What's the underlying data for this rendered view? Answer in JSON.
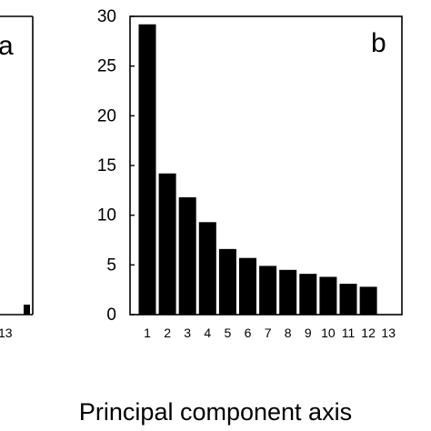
{
  "chart_data": [
    {
      "panel_label": "a",
      "partial": true,
      "visible_tick_labels": {
        "x": [
          "13"
        ]
      },
      "visible_bar": {
        "category": "13",
        "value": 1.0
      }
    },
    {
      "panel_label": "b",
      "type": "bar",
      "categories": [
        "1",
        "2",
        "3",
        "4",
        "5",
        "6",
        "7",
        "8",
        "9",
        "10",
        "11",
        "12",
        "13"
      ],
      "values": [
        29.2,
        14.2,
        11.8,
        9.3,
        6.6,
        5.7,
        4.9,
        4.5,
        4.1,
        3.8,
        3.1,
        2.8,
        0
      ],
      "ylim": [
        0,
        30
      ],
      "yticks": [
        0,
        5,
        10,
        15,
        20,
        25,
        30
      ],
      "bar_color": "#000000",
      "grid": false
    }
  ],
  "shared_xlabel": "Principal component axis"
}
